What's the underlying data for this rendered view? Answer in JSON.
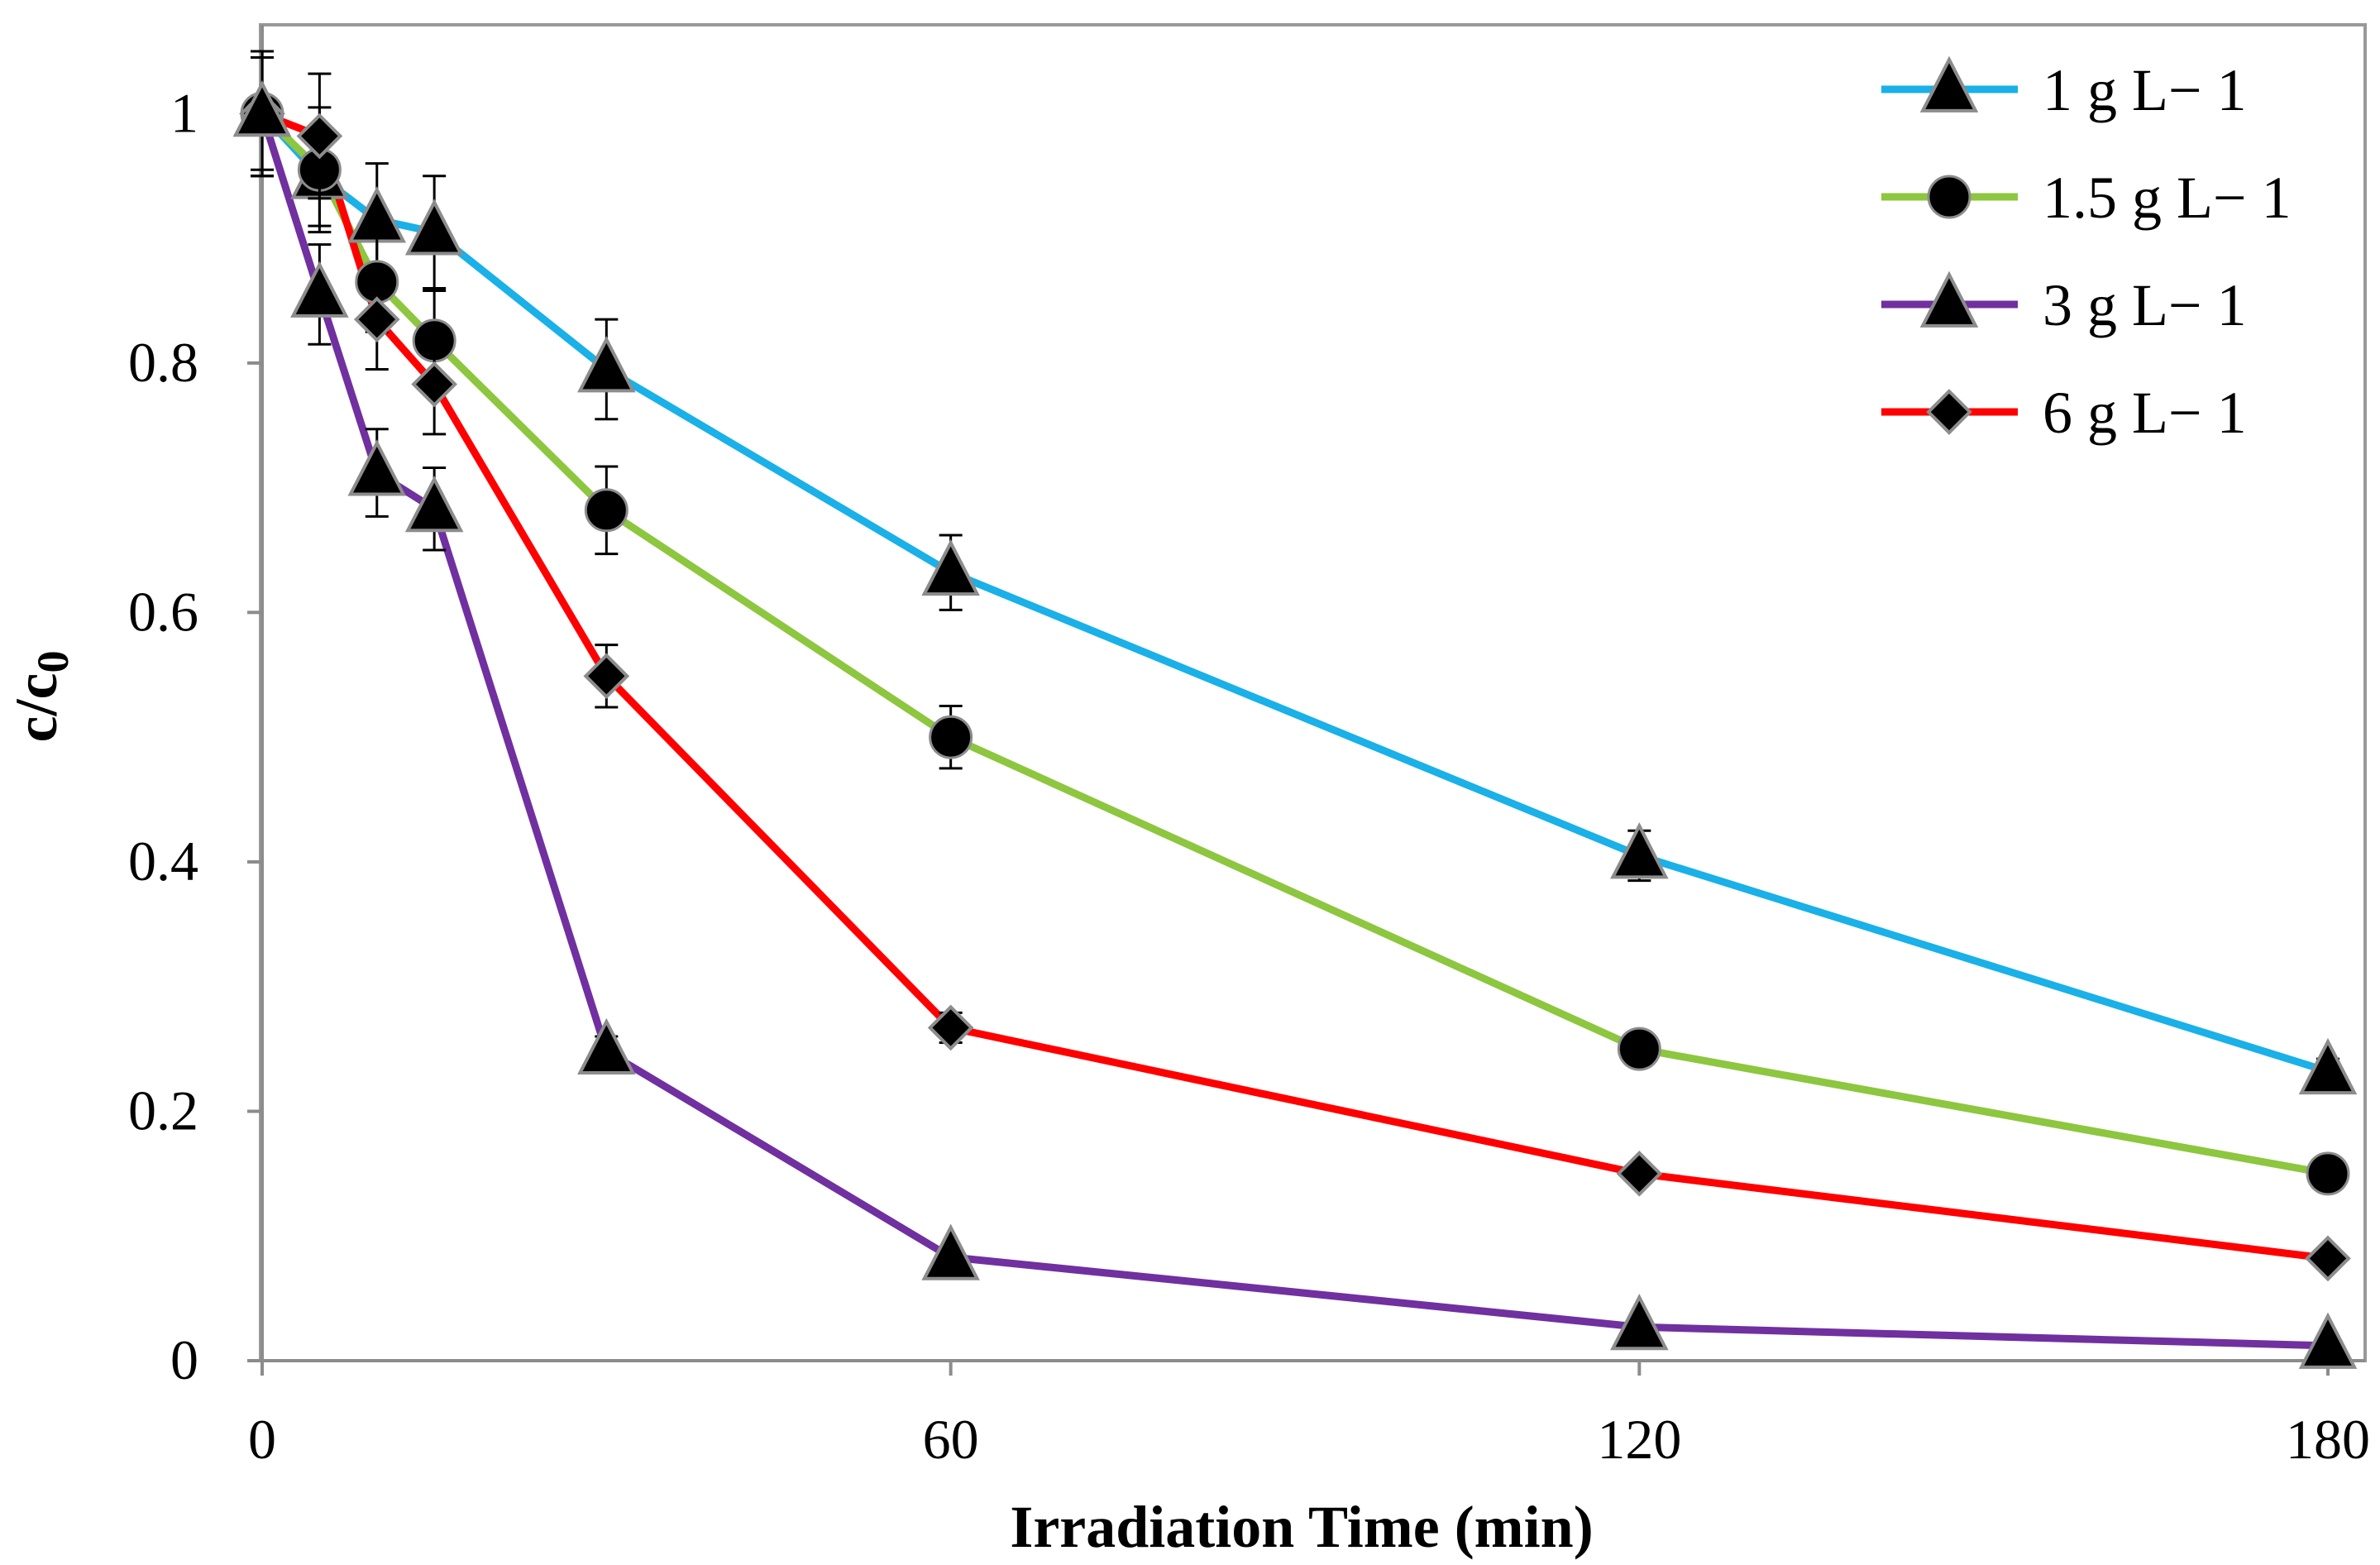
{
  "chart_data": {
    "type": "line",
    "title": "",
    "xlabel": "Irradiation Time (min)",
    "ylabel": "c/c",
    "ylabel_sub": "0",
    "xlim": [
      0,
      180
    ],
    "ylim": [
      0,
      1.05
    ],
    "xticks": [
      0,
      60,
      120,
      180
    ],
    "yticks": [
      0,
      0.2,
      0.4,
      0.6,
      0.8,
      1
    ],
    "ytick_labels": [
      "0",
      "0.2",
      "0.4",
      "0.6",
      "0.8",
      "1"
    ],
    "grid": false,
    "legend_position": "top-right",
    "x": [
      0,
      5,
      10,
      15,
      30,
      60,
      120,
      180
    ],
    "series": [
      {
        "name": "1 g L− 1",
        "color": "#1AB0E8",
        "marker": "triangle",
        "values": [
          1.0,
          0.95,
          0.915,
          0.905,
          0.795,
          0.632,
          0.405,
          0.232
        ],
        "errors": [
          0.05,
          0.04,
          0.045,
          0.045,
          0.04,
          0.03,
          0.02,
          0.01
        ]
      },
      {
        "name": "1.5 g L− 1",
        "color": "#8DC63F",
        "marker": "circle",
        "values": [
          1.0,
          0.955,
          0.865,
          0.818,
          0.682,
          0.5,
          0.25,
          0.15
        ],
        "errors": [
          0.05,
          0.05,
          0.04,
          0.04,
          0.035,
          0.025,
          0.0,
          0.0
        ]
      },
      {
        "name": "3 g L− 1",
        "color": "#7030A0",
        "marker": "triangle",
        "values": [
          1.0,
          0.855,
          0.712,
          0.683,
          0.248,
          0.083,
          0.027,
          0.012
        ],
        "errors": [
          0.05,
          0.04,
          0.035,
          0.033,
          0.012,
          0.0,
          0.0,
          0.0
        ]
      },
      {
        "name": "6 g L− 1",
        "color": "#FF0000",
        "marker": "diamond",
        "values": [
          1.0,
          0.982,
          0.835,
          0.783,
          0.549,
          0.267,
          0.15,
          0.082
        ],
        "errors": [
          0.045,
          0.05,
          0.04,
          0.04,
          0.025,
          0.012,
          0.0,
          0.0
        ]
      }
    ]
  }
}
